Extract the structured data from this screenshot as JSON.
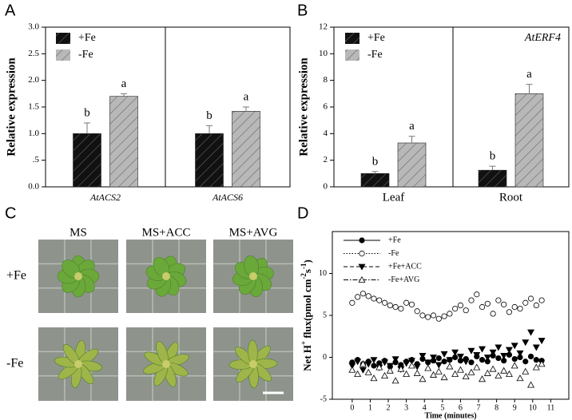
{
  "panel_labels": [
    "A",
    "B",
    "C",
    "D"
  ],
  "chart_data": [
    {
      "type": "bar",
      "ylabel": "Relative expression",
      "categories": [
        "AtACS2",
        "AtACS6"
      ],
      "ylim": [
        0,
        3
      ],
      "yticks": [
        {
          "value": 0,
          "label": "0.0"
        },
        {
          "value": 0.5,
          "label": ".5"
        },
        {
          "value": 1,
          "label": "1.0"
        },
        1.5,
        {
          "value": 2,
          "label": "2.0"
        },
        2.5,
        {
          "value": 3,
          "label": "3.0"
        }
      ],
      "series": [
        {
          "name": "+Fe",
          "color": "#111111",
          "values": [
            1.0,
            1.0
          ],
          "errors": [
            0.2,
            0.15
          ],
          "letters": [
            "b",
            "b"
          ]
        },
        {
          "name": "-Fe",
          "color": "#b8b8b8",
          "values": [
            1.7,
            1.42
          ],
          "errors": [
            0.05,
            0.08
          ],
          "letters": [
            "a",
            "a"
          ]
        }
      ],
      "hatch": true,
      "italic_categories": true
    },
    {
      "type": "bar",
      "ylabel": "Relative expression",
      "annotation": "AtERF4",
      "categories": [
        "Leaf",
        "Root"
      ],
      "ylim": [
        0,
        12
      ],
      "yticks": [
        0,
        2,
        4,
        6,
        8,
        10,
        12
      ],
      "series": [
        {
          "name": "+Fe",
          "color": "#111111",
          "values": [
            1.0,
            1.25
          ],
          "errors": [
            0.15,
            0.3
          ],
          "letters": [
            "b",
            "b"
          ]
        },
        {
          "name": "-Fe",
          "color": "#b8b8b8",
          "values": [
            3.3,
            7.0
          ],
          "errors": [
            0.5,
            0.7
          ],
          "letters": [
            "a",
            "a"
          ]
        }
      ],
      "hatch": true,
      "italic_categories": false
    },
    {
      "type": "line",
      "xlabel": "Time (minutes)",
      "ylabel": [
        "Net H",
        "+",
        " flux(pmol cm",
        "-2",
        "s",
        "-1",
        ")"
      ],
      "x": [
        0,
        0.3,
        0.6,
        0.9,
        1.2,
        1.5,
        1.8,
        2.1,
        2.4,
        2.7,
        3,
        3.3,
        3.6,
        3.9,
        4.2,
        4.5,
        4.8,
        5.1,
        5.4,
        5.7,
        6,
        6.3,
        6.6,
        6.9,
        7.2,
        7.5,
        7.8,
        8.1,
        8.4,
        8.7,
        9,
        9.3,
        9.6,
        9.9,
        10.2,
        10.5
      ],
      "xlim": [
        -1.1,
        12
      ],
      "xticks": [
        0,
        1,
        2,
        3,
        4,
        5,
        6,
        7,
        8,
        9,
        10,
        11
      ],
      "ylim": [
        -5,
        15
      ],
      "yticks": [
        -5,
        0,
        5,
        10
      ],
      "series": [
        {
          "name": "+Fe",
          "marker": "circle",
          "filled": true,
          "dash": "solid",
          "values": [
            -0.6,
            -0.3,
            -0.8,
            -0.5,
            -1.0,
            -0.7,
            -0.4,
            -1.1,
            -0.6,
            -0.9,
            -0.5,
            -0.3,
            -0.8,
            -0.2,
            -0.6,
            -0.4,
            -0.1,
            -0.5,
            -0.3,
            0.0,
            -0.4,
            -0.2,
            -0.6,
            0.1,
            -0.3,
            -0.5,
            0.2,
            -0.1,
            -0.4,
            0.3,
            -0.2,
            0.0,
            -0.5,
            0.1,
            -0.3,
            -0.4
          ]
        },
        {
          "name": "-Fe",
          "marker": "circle",
          "filled": false,
          "dash": "dotted",
          "values": [
            6.5,
            7.2,
            7.6,
            7.3,
            7.0,
            6.8,
            6.5,
            6.2,
            6.0,
            5.8,
            6.5,
            6.3,
            5.5,
            5.0,
            4.8,
            5.0,
            4.6,
            4.9,
            5.2,
            5.8,
            6.2,
            5.6,
            6.8,
            7.5,
            6.0,
            6.4,
            5.2,
            6.8,
            6.3,
            5.4,
            6.0,
            5.8,
            6.5,
            7.0,
            6.2,
            6.8
          ]
        },
        {
          "name": "+Fe+ACC",
          "marker": "triangle-down",
          "filled": true,
          "dash": "dashed",
          "values": [
            -1.0,
            -0.5,
            -1.5,
            -0.8,
            -0.3,
            -1.2,
            -0.6,
            -1.0,
            -0.2,
            -1.4,
            -0.7,
            -0.4,
            -1.1,
            0.2,
            -0.6,
            0.0,
            -0.9,
            0.4,
            -0.3,
            0.6,
            0.1,
            -0.5,
            0.8,
            0.3,
            1.0,
            0.0,
            0.6,
            1.2,
            0.2,
            0.9,
            1.4,
            0.5,
            1.8,
            3.0,
            1.2,
            2.0
          ]
        },
        {
          "name": "-Fe+AVG",
          "marker": "triangle-up",
          "filled": false,
          "dash": "dashdot",
          "values": [
            -1.5,
            -2.0,
            -0.8,
            -1.8,
            -2.5,
            -1.2,
            -2.2,
            -1.6,
            -2.8,
            -1.4,
            -2.0,
            -1.0,
            -1.9,
            -2.6,
            -1.3,
            -2.1,
            -1.7,
            -2.4,
            -1.1,
            -2.0,
            -1.5,
            -2.3,
            -1.8,
            -1.2,
            -2.6,
            -1.9,
            -1.4,
            -2.2,
            -1.6,
            -2.0,
            -1.0,
            -2.5,
            -1.7,
            -3.3,
            -1.2,
            -0.8
          ]
        }
      ]
    }
  ],
  "photo_panel": {
    "columns": [
      "MS",
      "MS+ACC",
      "MS+AVG"
    ],
    "rows": [
      "+Fe",
      "-Fe"
    ]
  }
}
